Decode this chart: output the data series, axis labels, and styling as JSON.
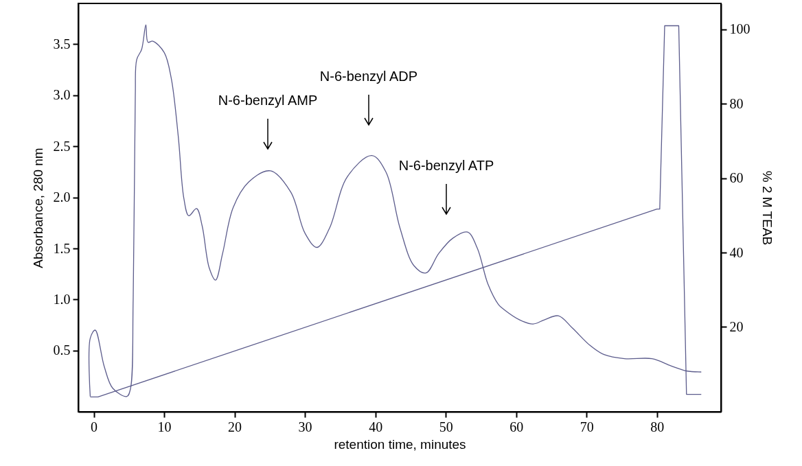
{
  "chart_data": {
    "type": "line",
    "xlabel": "retention time, minutes",
    "ylabel": "Absorbance, 280 nm",
    "y2label": "% 2 M TEAB",
    "xlim": [
      -2.2,
      89.1
    ],
    "xticks": [
      0,
      10,
      20,
      30,
      40,
      50,
      60,
      70,
      80
    ],
    "ylim": [
      -0.1,
      3.9
    ],
    "yticks": [
      0.5,
      {
        "value": 1,
        "label": "1.0"
      },
      1.5,
      {
        "value": 2,
        "label": "2.0"
      },
      2.5,
      {
        "value": 3,
        "label": "3.0"
      },
      3.5
    ],
    "y2lim": [
      -2.8,
      107
    ],
    "y2ticks": [
      20,
      40,
      60,
      80,
      100
    ],
    "series": [
      {
        "color": "#5c5c8c",
        "x": [
          -0.5,
          -0.5,
          0.2,
          1.5,
          2.7,
          4.7,
          5.2,
          5.6,
          5.9,
          6.1,
          6.8,
          7.4,
          7.7,
          8.4,
          10,
          11,
          12,
          12.8,
          13.5,
          14.6,
          15.4,
          16.4,
          17.3,
          18.3,
          19.8,
          22,
          25.1,
          28,
          30,
          31.7,
          33.5,
          36,
          39.5,
          41.5,
          43.5,
          45.5,
          47.2,
          49,
          51,
          53.1,
          54.5,
          56,
          57.5,
          58.3,
          60.5,
          62.4,
          64,
          66,
          68,
          70.5,
          72.5,
          75.4,
          79.3,
          82,
          84.2,
          86.3
        ],
        "values": [
          0.05,
          0.62,
          0.7,
          0.34,
          0.13,
          0.05,
          0.12,
          1.0,
          3.0,
          3.35,
          3.45,
          3.69,
          3.52,
          3.53,
          3.42,
          3.17,
          2.6,
          1.99,
          1.82,
          1.89,
          1.72,
          1.31,
          1.19,
          1.45,
          1.9,
          2.15,
          2.26,
          2.05,
          1.65,
          1.51,
          1.7,
          2.2,
          2.41,
          2.25,
          1.7,
          1.33,
          1.26,
          1.45,
          1.6,
          1.66,
          1.5,
          1.15,
          0.95,
          0.9,
          0.8,
          0.76,
          0.8,
          0.84,
          0.72,
          0.55,
          0.46,
          0.42,
          0.42,
          0.35,
          0.3,
          0.29
        ]
      },
      {
        "color": "#5c5c8c",
        "axis": "y2",
        "x": [
          -0.5,
          0.6,
          80,
          80.4,
          81.1,
          83.1,
          84.2,
          86.3
        ],
        "values": [
          1.2,
          1.2,
          51.7,
          51.7,
          101,
          101,
          1.9,
          1.9
        ]
      }
    ],
    "annotations": [
      "N-6-benzyl AMP",
      "N-6-benzyl ADP",
      "N-6-benzyl ATP"
    ]
  }
}
